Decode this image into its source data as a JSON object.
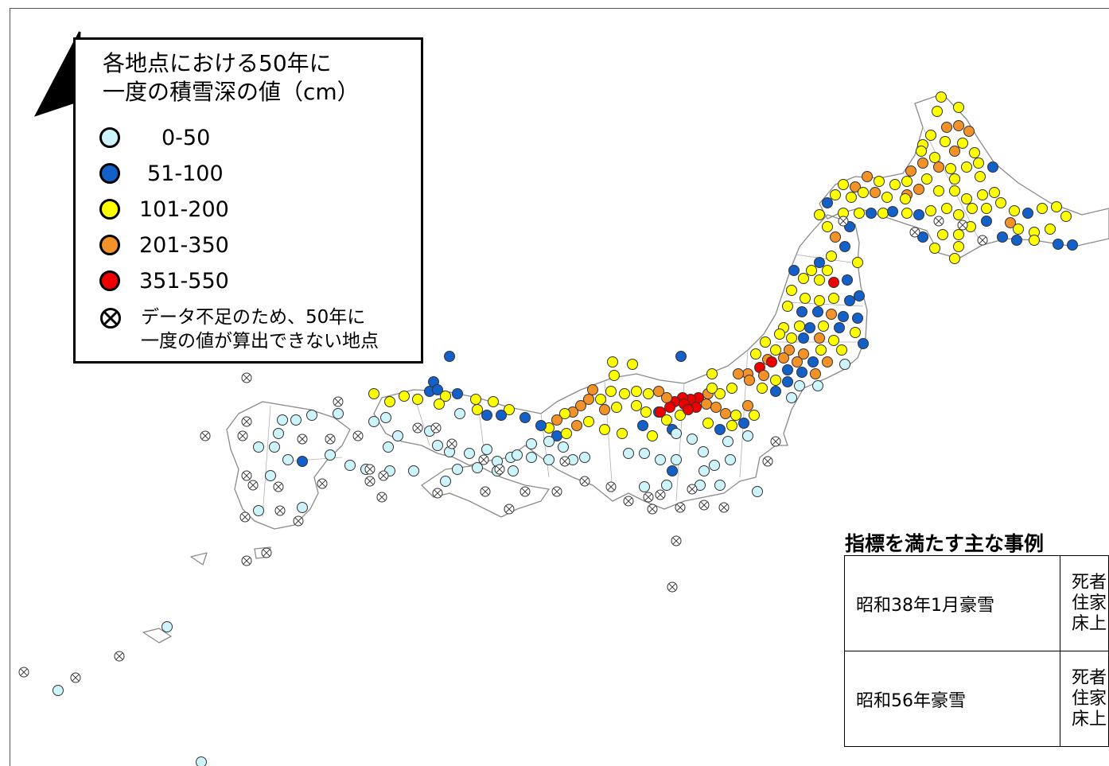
{
  "legend": {
    "title_line1": "各地点における50年に",
    "title_line2": "一度の積雪深の値（cm）",
    "categories": [
      {
        "label": "0-50",
        "color": "#cdf4fa"
      },
      {
        "label": "51-100",
        "color": "#1360c8"
      },
      {
        "label": "101-200",
        "color": "#ffff00"
      },
      {
        "label": "201-350",
        "color": "#f39228"
      },
      {
        "label": "351-550",
        "color": "#ee0000"
      }
    ],
    "na_line1": "データ不足のため、50年に",
    "na_line2": "一度の値が算出できない地点"
  },
  "cases": {
    "title": "指標を満たす主な事例",
    "rows": [
      {
        "name": "昭和38年1月豪雪",
        "detail": [
          "死者",
          "住家",
          "床上"
        ]
      },
      {
        "name": "昭和56年豪雪",
        "detail": [
          "死者",
          "住家",
          "床上"
        ]
      }
    ]
  },
  "map_colors": {
    "coast": "#8a8a8a",
    "outline": "#333333",
    "na_fill": "#ffffff"
  }
}
